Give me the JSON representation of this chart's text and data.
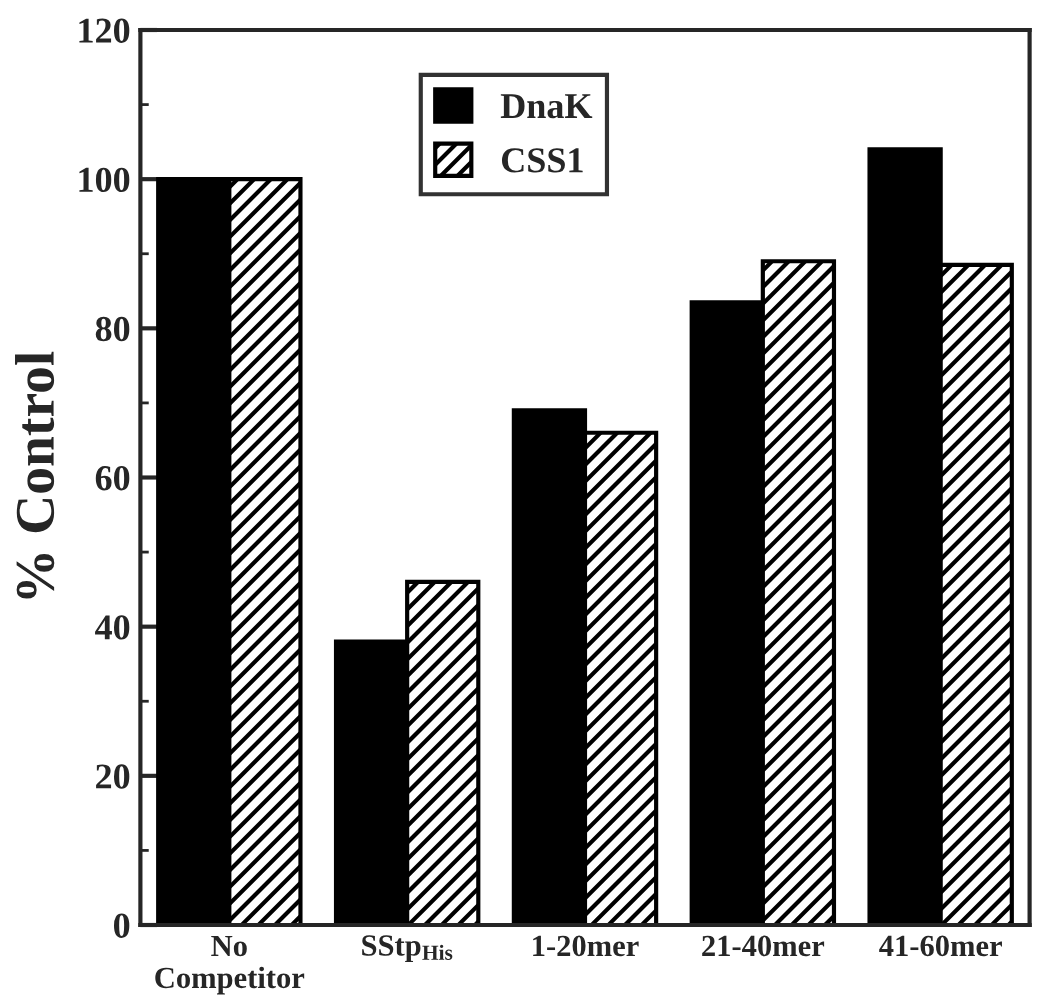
{
  "chart_data": {
    "type": "bar",
    "ylabel": "% Control",
    "categories": [
      "No\nCompetitor",
      "SStp$_{His}$",
      "1-20mer",
      "21-40mer",
      "41-60mer"
    ],
    "series": [
      {
        "name": "DnaK",
        "color": "#000000",
        "values": [
          100,
          38,
          69,
          83.5,
          104
        ]
      },
      {
        "name": "CSS1",
        "color": "#000000",
        "values": [
          100,
          46,
          66,
          89,
          88.5
        ]
      }
    ],
    "ylim": [
      0,
      120
    ],
    "yticks": [
      0,
      20,
      40,
      60,
      80,
      100,
      120
    ],
    "grid": false,
    "legend": "top"
  }
}
